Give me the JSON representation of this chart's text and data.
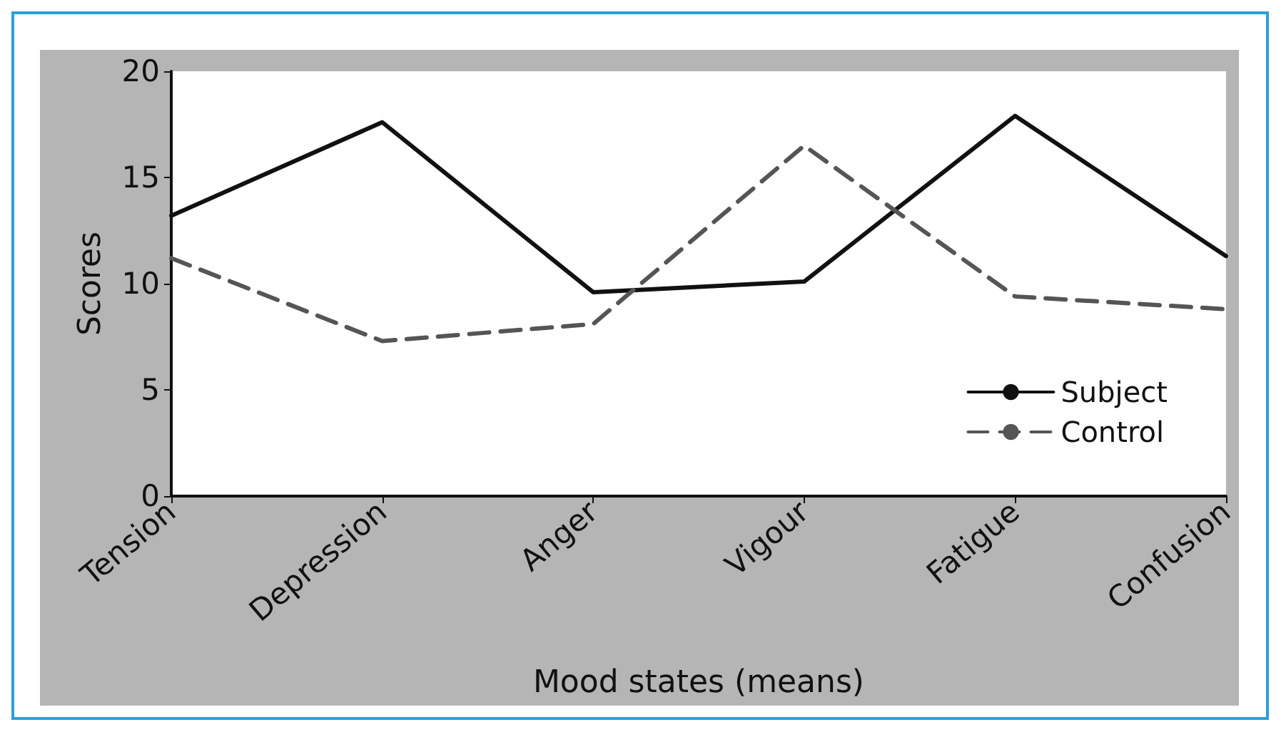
{
  "chart_data": {
    "type": "line",
    "xlabel": "Mood states (means)",
    "ylabel": "Scores",
    "categories": [
      "Tension",
      "Depression",
      "Anger",
      "Vigour",
      "Fatigue",
      "Confusion"
    ],
    "series": [
      {
        "name": "Subject",
        "color": "#111111",
        "line_style": "solid",
        "values": [
          13.2,
          17.6,
          9.6,
          10.1,
          17.9,
          11.3
        ]
      },
      {
        "name": "Control",
        "color": "#555555",
        "line_style": "dashed",
        "values": [
          11.2,
          7.3,
          8.1,
          16.5,
          9.4,
          8.8
        ]
      }
    ],
    "ylim": [
      0,
      20
    ],
    "yticks": [
      0,
      5,
      10,
      15,
      20
    ],
    "grid": false,
    "legend": "bottom right",
    "marker": "none"
  }
}
